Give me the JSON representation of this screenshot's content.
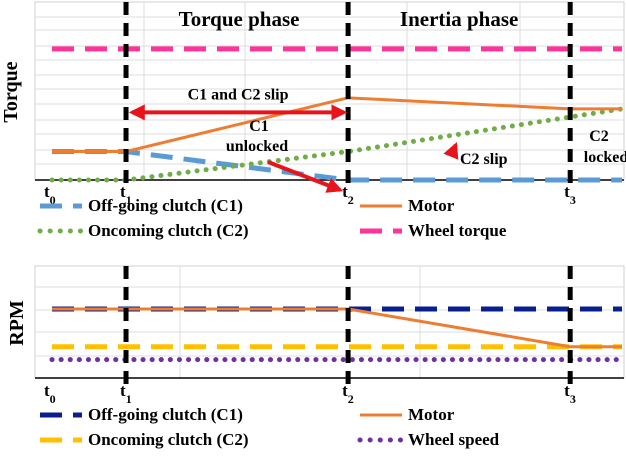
{
  "chart_data": [
    {
      "type": "line",
      "title": "",
      "xlabel": "",
      "ylabel": "Torque",
      "grid": true,
      "legend_placement": "bottom",
      "phases": [
        {
          "label": "Torque phase",
          "from": "t1",
          "to": "t2"
        },
        {
          "label": "Inertia phase",
          "from": "t2",
          "to": "t3"
        }
      ],
      "x_ticks": [
        {
          "base": "t",
          "sub": "0",
          "x": 0
        },
        {
          "base": "t",
          "sub": "1",
          "x": 1
        },
        {
          "base": "t",
          "sub": "2",
          "x": 4
        },
        {
          "base": "t",
          "sub": "3",
          "x": 7
        }
      ],
      "xlim": [
        0,
        7.7
      ],
      "ylim": [
        0,
        100
      ],
      "series": [
        {
          "name": "Off-going clutch (C1)",
          "color": "#5b9bd5",
          "style": "dashed",
          "x": [
            0,
            1,
            4,
            7.7
          ],
          "y": [
            18,
            18,
            0,
            0
          ]
        },
        {
          "name": "Motor",
          "color": "#ed7d31",
          "style": "solid",
          "x": [
            0,
            1,
            4,
            7,
            7.7
          ],
          "y": [
            18,
            18,
            52,
            45,
            45
          ]
        },
        {
          "name": "Oncoming clutch (C2)",
          "color": "#70ad47",
          "style": "dotted",
          "x": [
            0,
            1,
            4,
            7.7
          ],
          "y": [
            0,
            0,
            18,
            45
          ]
        },
        {
          "name": "Wheel torque",
          "color": "#ff3399",
          "style": "dashed",
          "x": [
            0,
            7.7
          ],
          "y": [
            83,
            83
          ]
        }
      ],
      "annotations": [
        {
          "text": "C1 and C2 slip",
          "type": "double-arrow",
          "from_x": 1,
          "to_x": 4,
          "y": 58
        },
        {
          "text": [
            "C1",
            "unlocked"
          ],
          "type": "arrow",
          "target": [
            4,
            0
          ]
        },
        {
          "text": "C2 slip",
          "type": "arrow",
          "target": [
            5.4,
            26
          ]
        },
        {
          "text": [
            "C2",
            "locked"
          ],
          "type": "label"
        }
      ]
    },
    {
      "type": "line",
      "title": "",
      "xlabel": "",
      "ylabel": "RPM",
      "grid": true,
      "legend_placement": "bottom",
      "x_ticks": [
        {
          "base": "t",
          "sub": "0",
          "x": 0
        },
        {
          "base": "t",
          "sub": "1",
          "x": 1
        },
        {
          "base": "t",
          "sub": "2",
          "x": 4
        },
        {
          "base": "t",
          "sub": "3",
          "x": 7
        }
      ],
      "xlim": [
        0,
        7.7
      ],
      "ylim": [
        0,
        100
      ],
      "series": [
        {
          "name": "Off-going clutch (C1)",
          "color": "#0a1f8f",
          "style": "dashed",
          "x": [
            0,
            7.7
          ],
          "y": [
            75,
            75
          ]
        },
        {
          "name": "Motor",
          "color": "#ed7d31",
          "style": "solid",
          "x": [
            0,
            4,
            7,
            7.7
          ],
          "y": [
            75,
            75,
            34,
            34
          ]
        },
        {
          "name": "Oncoming clutch (C2)",
          "color": "#ffc000",
          "style": "dashed",
          "x": [
            0,
            7.7
          ],
          "y": [
            34,
            34
          ]
        },
        {
          "name": "Wheel speed",
          "color": "#7030a0",
          "style": "dotted",
          "x": [
            0,
            7.7
          ],
          "y": [
            20,
            20
          ]
        }
      ]
    }
  ]
}
